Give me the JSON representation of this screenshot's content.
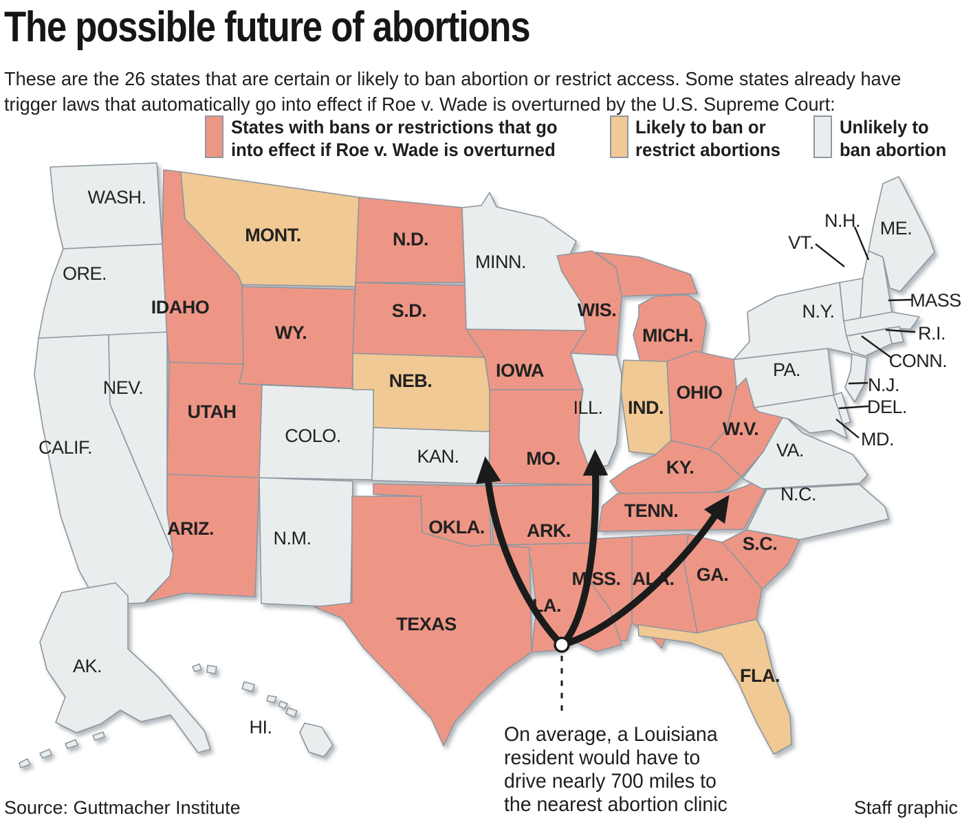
{
  "title": "The possible future of abortions",
  "subtitle": {
    "lines": [
      "These are the 26 states that are certain or likely to ban abortion or restrict access. Some states already have",
      "trigger laws that automatically go into effect if Roe v. Wade is overturned by the U.S. Supreme Court:"
    ]
  },
  "legend": {
    "items": [
      {
        "status": "ban",
        "color": "#EE9686",
        "lines": [
          "States with bans or restrictions that go",
          "into effect if Roe v. Wade is overturned"
        ]
      },
      {
        "status": "likely",
        "color": "#F0C994",
        "lines": [
          "Likely to ban or",
          "restrict abortions"
        ]
      },
      {
        "status": "unlikely",
        "color": "#E9EDEE",
        "lines": [
          "Unlikely to",
          "ban abortion"
        ]
      }
    ]
  },
  "map": {
    "states": [
      {
        "id": "wash",
        "label": "WASH.",
        "status": "unlikely"
      },
      {
        "id": "ore",
        "label": "ORE.",
        "status": "unlikely"
      },
      {
        "id": "calif",
        "label": "CALIF.",
        "status": "unlikely"
      },
      {
        "id": "nev",
        "label": "NEV.",
        "status": "unlikely"
      },
      {
        "id": "idaho",
        "label": "IDAHO",
        "status": "ban"
      },
      {
        "id": "mont",
        "label": "MONT.",
        "status": "likely"
      },
      {
        "id": "wy",
        "label": "WY.",
        "status": "ban"
      },
      {
        "id": "utah",
        "label": "UTAH",
        "status": "ban"
      },
      {
        "id": "ariz",
        "label": "ARIZ.",
        "status": "ban"
      },
      {
        "id": "nm",
        "label": "N.M.",
        "status": "unlikely"
      },
      {
        "id": "colo",
        "label": "COLO.",
        "status": "unlikely"
      },
      {
        "id": "kan",
        "label": "KAN.",
        "status": "unlikely"
      },
      {
        "id": "neb",
        "label": "NEB.",
        "status": "likely"
      },
      {
        "id": "sd",
        "label": "S.D.",
        "status": "ban"
      },
      {
        "id": "nd",
        "label": "N.D.",
        "status": "ban"
      },
      {
        "id": "minn",
        "label": "MINN.",
        "status": "unlikely"
      },
      {
        "id": "iowa",
        "label": "IOWA",
        "status": "ban"
      },
      {
        "id": "mo",
        "label": "MO.",
        "status": "ban"
      },
      {
        "id": "wis",
        "label": "WIS.",
        "status": "ban"
      },
      {
        "id": "mich",
        "label": "MICH.",
        "status": "ban"
      },
      {
        "id": "ill",
        "label": "ILL.",
        "status": "unlikely"
      },
      {
        "id": "ind",
        "label": "IND.",
        "status": "likely"
      },
      {
        "id": "ohio",
        "label": "OHIO",
        "status": "ban"
      },
      {
        "id": "wv",
        "label": "W.V.",
        "status": "ban"
      },
      {
        "id": "ky",
        "label": "KY.",
        "status": "ban"
      },
      {
        "id": "tenn",
        "label": "TENN.",
        "status": "ban"
      },
      {
        "id": "va",
        "label": "VA.",
        "status": "unlikely"
      },
      {
        "id": "nc",
        "label": "N.C.",
        "status": "unlikely"
      },
      {
        "id": "sc",
        "label": "S.C.",
        "status": "ban"
      },
      {
        "id": "ga",
        "label": "GA.",
        "status": "ban"
      },
      {
        "id": "ala",
        "label": "ALA.",
        "status": "ban"
      },
      {
        "id": "miss",
        "label": "MISS.",
        "status": "ban"
      },
      {
        "id": "ark",
        "label": "ARK.",
        "status": "ban"
      },
      {
        "id": "la",
        "label": "LA.",
        "status": "ban"
      },
      {
        "id": "okla",
        "label": "OKLA.",
        "status": "ban"
      },
      {
        "id": "texas",
        "label": "TEXAS",
        "status": "ban"
      },
      {
        "id": "fla",
        "label": "FLA.",
        "status": "likely"
      },
      {
        "id": "pa",
        "label": "PA.",
        "status": "unlikely"
      },
      {
        "id": "ny",
        "label": "N.Y.",
        "status": "unlikely"
      },
      {
        "id": "vt",
        "label": "VT.",
        "status": "unlikely"
      },
      {
        "id": "nh",
        "label": "N.H.",
        "status": "unlikely"
      },
      {
        "id": "me",
        "label": "ME.",
        "status": "unlikely"
      },
      {
        "id": "mass",
        "label": "MASS.",
        "status": "unlikely"
      },
      {
        "id": "ri",
        "label": "R.I.",
        "status": "unlikely"
      },
      {
        "id": "conn",
        "label": "CONN.",
        "status": "unlikely"
      },
      {
        "id": "nj",
        "label": "N.J.",
        "status": "unlikely"
      },
      {
        "id": "del",
        "label": "DEL.",
        "status": "unlikely"
      },
      {
        "id": "md",
        "label": "MD.",
        "status": "unlikely"
      },
      {
        "id": "ak",
        "label": "AK.",
        "status": "unlikely"
      },
      {
        "id": "hi",
        "label": "HI.",
        "status": "unlikely"
      }
    ]
  },
  "annotation": {
    "lines": [
      "On average, a Louisiana",
      "resident would have to",
      "drive nearly 700 miles to",
      "the nearest abortion clinic"
    ]
  },
  "source": "Source: Guttmacher Institute",
  "credit": "Staff graphic"
}
